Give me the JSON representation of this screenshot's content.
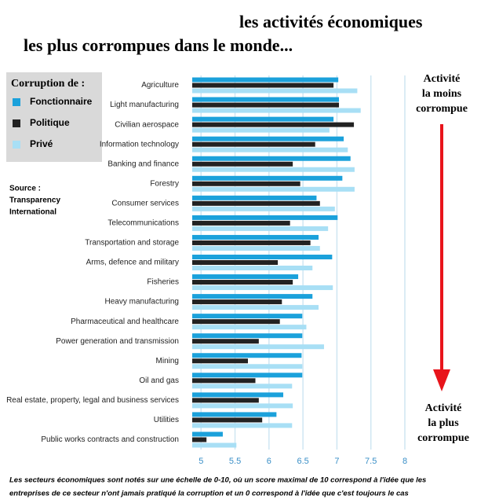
{
  "chart_data": {
    "type": "bar",
    "orientation": "horizontal",
    "title": [
      "les activités économiques",
      "les plus corrompues dans le monde..."
    ],
    "legend_title": "Corruption de :",
    "source": [
      "Source :",
      "Transparency",
      "International"
    ],
    "annotations": {
      "top": [
        "Activité",
        "la moins",
        "corrompue"
      ],
      "bottom": [
        "Activité",
        "la plus",
        "corrompue"
      ]
    },
    "footnote": [
      "Les secteurs économiques sont notés sur une échelle de 0-10, où un score maximal de 10 correspond à l'idée que les",
      "entreprises de ce secteur n'ont jamais pratiqué la corruption et un 0 correspond à l'idée que c'est toujours le cas"
    ],
    "categories": [
      "Agriculture",
      "Light manufacturing",
      "Civilian aerospace",
      "Information technology",
      "Banking and finance",
      "Forestry",
      "Consumer services",
      "Telecommunications",
      "Transportation and storage",
      "Arms, defence and military",
      "Fisheries",
      "Heavy manufacturing",
      "Pharmaceutical and healthcare",
      "Power generation and transmission",
      "Mining",
      "Oil and gas",
      "Real estate, property, legal and business services",
      "Utilities",
      "Public works contracts and construction"
    ],
    "series": [
      {
        "name": "Fonctionnaire",
        "color": "#1ba1db",
        "values": [
          7.02,
          7.03,
          6.95,
          7.1,
          7.2,
          7.08,
          6.7,
          7.01,
          6.73,
          6.93,
          6.43,
          6.64,
          6.49,
          6.49,
          6.48,
          6.49,
          6.21,
          6.11,
          5.32
        ]
      },
      {
        "name": "Politique",
        "color": "#222222",
        "values": [
          6.95,
          7.03,
          7.25,
          6.68,
          6.35,
          6.46,
          6.75,
          6.31,
          6.61,
          6.13,
          6.35,
          6.19,
          6.16,
          5.85,
          5.69,
          5.8,
          5.85,
          5.9,
          5.08
        ]
      },
      {
        "name": "Privé",
        "color": "#a8dff5",
        "values": [
          7.3,
          7.35,
          6.89,
          7.16,
          7.26,
          7.26,
          6.97,
          6.87,
          6.75,
          6.64,
          6.94,
          6.73,
          6.55,
          6.81,
          6.49,
          6.34,
          6.35,
          6.34,
          5.52
        ]
      }
    ],
    "xlim": [
      4.87,
      8
    ],
    "xticks": [
      5,
      5.5,
      6,
      6.5,
      7,
      7.5,
      8
    ],
    "grid": true
  }
}
